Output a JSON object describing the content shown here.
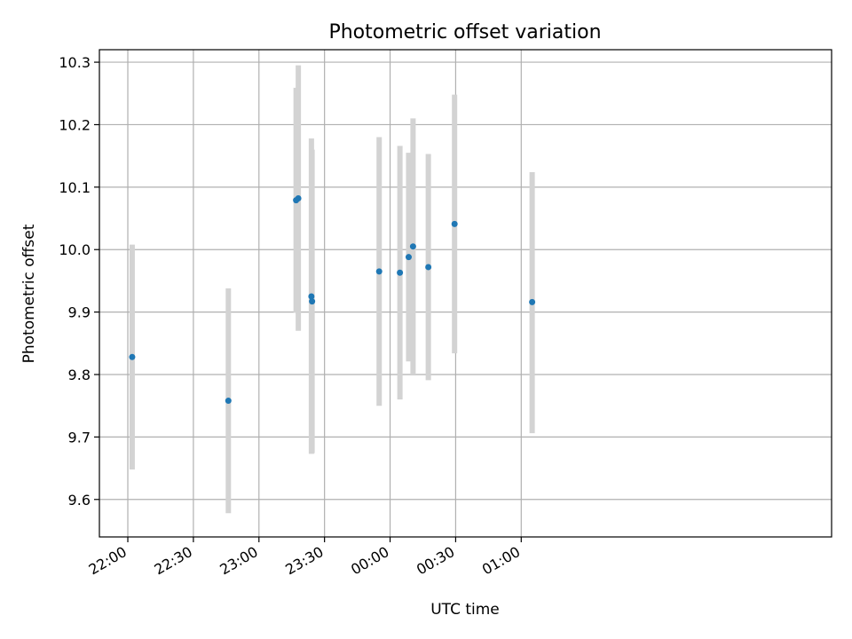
{
  "chart_data": {
    "type": "scatter",
    "title": "Photometric offset variation",
    "xlabel": "UTC time",
    "ylabel": "Photometric offset",
    "x_unit": "minutes after 22:00 UTC",
    "xlim": [
      -13,
      322
    ],
    "ylim": [
      9.54,
      10.32
    ],
    "x_ticks": [
      {
        "value": 0,
        "label": "22:00"
      },
      {
        "value": 30,
        "label": "22:30"
      },
      {
        "value": 60,
        "label": "23:00"
      },
      {
        "value": 90,
        "label": "23:30"
      },
      {
        "value": 120,
        "label": "00:00"
      },
      {
        "value": 150,
        "label": "00:30"
      },
      {
        "value": 180,
        "label": "01:00"
      }
    ],
    "y_ticks": [
      {
        "value": 9.6,
        "label": "9.6"
      },
      {
        "value": 9.7,
        "label": "9.7"
      },
      {
        "value": 9.8,
        "label": "9.8"
      },
      {
        "value": 9.9,
        "label": "9.9"
      },
      {
        "value": 10.0,
        "label": "10.0"
      },
      {
        "value": 10.1,
        "label": "10.1"
      },
      {
        "value": 10.2,
        "label": "10.2"
      },
      {
        "value": 10.3,
        "label": "10.3"
      }
    ],
    "grid": true,
    "x_tick_rotation": 30,
    "colors": {
      "point": "#1f77b4",
      "errorbar": "#d3d3d3"
    },
    "points": [
      {
        "x": 2,
        "y": 9.828,
        "low": 9.648,
        "high": 10.008
      },
      {
        "x": 46,
        "y": 9.758,
        "low": 9.578,
        "high": 9.938
      },
      {
        "x": 77,
        "y": 10.079,
        "low": 9.899,
        "high": 10.259
      },
      {
        "x": 78,
        "y": 10.082,
        "low": 9.87,
        "high": 10.295
      },
      {
        "x": 84,
        "y": 9.925,
        "low": 9.673,
        "high": 10.178
      },
      {
        "x": 84.3,
        "y": 9.917,
        "low": 9.674,
        "high": 10.16
      },
      {
        "x": 115,
        "y": 9.965,
        "low": 9.75,
        "high": 10.18
      },
      {
        "x": 124.5,
        "y": 9.963,
        "low": 9.76,
        "high": 10.166
      },
      {
        "x": 128.5,
        "y": 9.988,
        "low": 9.821,
        "high": 10.155
      },
      {
        "x": 130.5,
        "y": 10.005,
        "low": 9.8,
        "high": 10.21
      },
      {
        "x": 137.5,
        "y": 9.972,
        "low": 9.791,
        "high": 10.153
      },
      {
        "x": 149.5,
        "y": 10.041,
        "low": 9.834,
        "high": 10.248
      },
      {
        "x": 185,
        "y": 9.916,
        "low": 9.706,
        "high": 10.124
      }
    ]
  }
}
